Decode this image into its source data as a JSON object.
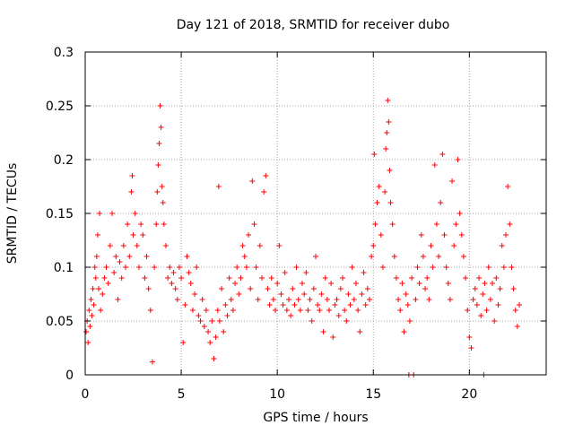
{
  "chart_data": {
    "type": "scatter",
    "title": "Day 121 of 2018, SRMTID for receiver dubo",
    "xlabel": "GPS time / hours",
    "ylabel": "SRMTID / TECUs",
    "xlim": [
      0,
      24
    ],
    "ylim": [
      0,
      0.3
    ],
    "xticks": [
      "0",
      "5",
      "10",
      "15",
      "20"
    ],
    "yticks": [
      "0",
      "0.05",
      "0.1",
      "0.15",
      "0.2",
      "0.25",
      "0.3"
    ],
    "grid": true,
    "marker": "+",
    "series_color": "#ff0000",
    "series": [
      {
        "name": "SRMTID",
        "points": [
          [
            0.05,
            0.04
          ],
          [
            0.1,
            0.05
          ],
          [
            0.15,
            0.03
          ],
          [
            0.2,
            0.06
          ],
          [
            0.25,
            0.045
          ],
          [
            0.3,
            0.07
          ],
          [
            0.35,
            0.055
          ],
          [
            0.4,
            0.08
          ],
          [
            0.45,
            0.065
          ],
          [
            0.5,
            0.1
          ],
          [
            0.55,
            0.09
          ],
          [
            0.6,
            0.11
          ],
          [
            0.65,
            0.13
          ],
          [
            0.7,
            0.08
          ],
          [
            0.75,
            0.15
          ],
          [
            0.8,
            0.06
          ],
          [
            0.9,
            0.075
          ],
          [
            1.0,
            0.09
          ],
          [
            1.1,
            0.1
          ],
          [
            1.2,
            0.085
          ],
          [
            1.3,
            0.12
          ],
          [
            1.4,
            0.15
          ],
          [
            1.5,
            0.095
          ],
          [
            1.6,
            0.11
          ],
          [
            1.7,
            0.07
          ],
          [
            1.8,
            0.105
          ],
          [
            1.9,
            0.09
          ],
          [
            2.0,
            0.12
          ],
          [
            2.1,
            0.1
          ],
          [
            2.2,
            0.14
          ],
          [
            2.3,
            0.11
          ],
          [
            2.4,
            0.17
          ],
          [
            2.45,
            0.185
          ],
          [
            2.5,
            0.13
          ],
          [
            2.6,
            0.15
          ],
          [
            2.7,
            0.12
          ],
          [
            2.8,
            0.1
          ],
          [
            2.9,
            0.14
          ],
          [
            3.0,
            0.13
          ],
          [
            3.1,
            0.09
          ],
          [
            3.2,
            0.11
          ],
          [
            3.3,
            0.08
          ],
          [
            3.4,
            0.06
          ],
          [
            3.5,
            0.012
          ],
          [
            3.6,
            0.1
          ],
          [
            3.7,
            0.14
          ],
          [
            3.75,
            0.17
          ],
          [
            3.8,
            0.195
          ],
          [
            3.85,
            0.215
          ],
          [
            3.9,
            0.25
          ],
          [
            3.95,
            0.23
          ],
          [
            4.0,
            0.175
          ],
          [
            4.05,
            0.16
          ],
          [
            4.1,
            0.14
          ],
          [
            4.2,
            0.12
          ],
          [
            4.3,
            0.09
          ],
          [
            4.4,
            0.1
          ],
          [
            4.5,
            0.085
          ],
          [
            4.6,
            0.095
          ],
          [
            4.7,
            0.08
          ],
          [
            4.8,
            0.07
          ],
          [
            4.9,
            0.1
          ],
          [
            5.0,
            0.09
          ],
          [
            5.1,
            0.03
          ],
          [
            5.2,
            0.065
          ],
          [
            5.3,
            0.11
          ],
          [
            5.4,
            0.095
          ],
          [
            5.5,
            0.085
          ],
          [
            5.6,
            0.06
          ],
          [
            5.7,
            0.075
          ],
          [
            5.8,
            0.1
          ],
          [
            5.9,
            0.055
          ],
          [
            6.0,
            0.05
          ],
          [
            6.1,
            0.07
          ],
          [
            6.2,
            0.045
          ],
          [
            6.3,
            0.06
          ],
          [
            6.4,
            0.04
          ],
          [
            6.5,
            0.03
          ],
          [
            6.6,
            0.05
          ],
          [
            6.7,
            0.015
          ],
          [
            6.8,
            0.035
          ],
          [
            6.9,
            0.06
          ],
          [
            6.95,
            0.175
          ],
          [
            7.0,
            0.05
          ],
          [
            7.1,
            0.08
          ],
          [
            7.2,
            0.04
          ],
          [
            7.3,
            0.065
          ],
          [
            7.4,
            0.055
          ],
          [
            7.5,
            0.09
          ],
          [
            7.6,
            0.07
          ],
          [
            7.7,
            0.06
          ],
          [
            7.8,
            0.085
          ],
          [
            7.9,
            0.1
          ],
          [
            8.0,
            0.075
          ],
          [
            8.1,
            0.09
          ],
          [
            8.2,
            0.12
          ],
          [
            8.3,
            0.11
          ],
          [
            8.4,
            0.1
          ],
          [
            8.5,
            0.13
          ],
          [
            8.6,
            0.08
          ],
          [
            8.7,
            0.18
          ],
          [
            8.8,
            0.14
          ],
          [
            8.9,
            0.1
          ],
          [
            9.0,
            0.07
          ],
          [
            9.1,
            0.12
          ],
          [
            9.2,
            0.09
          ],
          [
            9.3,
            0.17
          ],
          [
            9.4,
            0.185
          ],
          [
            9.5,
            0.08
          ],
          [
            9.6,
            0.065
          ],
          [
            9.7,
            0.09
          ],
          [
            9.8,
            0.07
          ],
          [
            9.9,
            0.06
          ],
          [
            10.0,
            0.085
          ],
          [
            10.1,
            0.12
          ],
          [
            10.2,
            0.075
          ],
          [
            10.3,
            0.065
          ],
          [
            10.4,
            0.095
          ],
          [
            10.5,
            0.06
          ],
          [
            10.6,
            0.07
          ],
          [
            10.7,
            0.055
          ],
          [
            10.8,
            0.08
          ],
          [
            10.9,
            0.065
          ],
          [
            11.0,
            0.1
          ],
          [
            11.1,
            0.07
          ],
          [
            11.2,
            0.06
          ],
          [
            11.3,
            0.085
          ],
          [
            11.4,
            0.075
          ],
          [
            11.5,
            0.095
          ],
          [
            11.6,
            0.06
          ],
          [
            11.7,
            0.07
          ],
          [
            11.8,
            0.05
          ],
          [
            11.9,
            0.08
          ],
          [
            12.0,
            0.11
          ],
          [
            12.1,
            0.065
          ],
          [
            12.2,
            0.06
          ],
          [
            12.3,
            0.075
          ],
          [
            12.4,
            0.04
          ],
          [
            12.5,
            0.09
          ],
          [
            12.6,
            0.07
          ],
          [
            12.7,
            0.06
          ],
          [
            12.8,
            0.085
          ],
          [
            12.9,
            0.035
          ],
          [
            13.0,
            0.065
          ],
          [
            13.1,
            0.07
          ],
          [
            13.2,
            0.055
          ],
          [
            13.3,
            0.08
          ],
          [
            13.4,
            0.09
          ],
          [
            13.5,
            0.06
          ],
          [
            13.6,
            0.05
          ],
          [
            13.7,
            0.075
          ],
          [
            13.8,
            0.065
          ],
          [
            13.9,
            0.1
          ],
          [
            14.0,
            0.07
          ],
          [
            14.1,
            0.085
          ],
          [
            14.2,
            0.06
          ],
          [
            14.3,
            0.04
          ],
          [
            14.4,
            0.075
          ],
          [
            14.5,
            0.095
          ],
          [
            14.6,
            0.065
          ],
          [
            14.7,
            0.08
          ],
          [
            14.8,
            0.07
          ],
          [
            14.9,
            0.11
          ],
          [
            15.0,
            0.12
          ],
          [
            15.05,
            0.205
          ],
          [
            15.1,
            0.14
          ],
          [
            15.2,
            0.16
          ],
          [
            15.3,
            0.175
          ],
          [
            15.4,
            0.13
          ],
          [
            15.5,
            0.1
          ],
          [
            15.6,
            0.17
          ],
          [
            15.65,
            0.21
          ],
          [
            15.7,
            0.225
          ],
          [
            15.75,
            0.255
          ],
          [
            15.8,
            0.235
          ],
          [
            15.85,
            0.19
          ],
          [
            15.9,
            0.16
          ],
          [
            16.0,
            0.14
          ],
          [
            16.1,
            0.11
          ],
          [
            16.2,
            0.09
          ],
          [
            16.3,
            0.07
          ],
          [
            16.4,
            0.06
          ],
          [
            16.5,
            0.085
          ],
          [
            16.6,
            0.04
          ],
          [
            16.7,
            0.075
          ],
          [
            16.8,
            0.065
          ],
          [
            16.85,
            0.0
          ],
          [
            16.9,
            0.05
          ],
          [
            17.0,
            0.09
          ],
          [
            17.1,
            0.0
          ],
          [
            17.2,
            0.07
          ],
          [
            17.3,
            0.1
          ],
          [
            17.4,
            0.085
          ],
          [
            17.5,
            0.13
          ],
          [
            17.6,
            0.11
          ],
          [
            17.7,
            0.08
          ],
          [
            17.8,
            0.09
          ],
          [
            17.9,
            0.07
          ],
          [
            18.0,
            0.12
          ],
          [
            18.1,
            0.1
          ],
          [
            18.2,
            0.195
          ],
          [
            18.3,
            0.14
          ],
          [
            18.4,
            0.11
          ],
          [
            18.5,
            0.16
          ],
          [
            18.6,
            0.205
          ],
          [
            18.7,
            0.13
          ],
          [
            18.8,
            0.1
          ],
          [
            18.9,
            0.085
          ],
          [
            19.0,
            0.07
          ],
          [
            19.1,
            0.18
          ],
          [
            19.2,
            0.12
          ],
          [
            19.3,
            0.14
          ],
          [
            19.4,
            0.2
          ],
          [
            19.5,
            0.15
          ],
          [
            19.6,
            0.13
          ],
          [
            19.7,
            0.11
          ],
          [
            19.8,
            0.09
          ],
          [
            19.9,
            0.06
          ],
          [
            20.0,
            0.035
          ],
          [
            20.1,
            0.025
          ],
          [
            20.2,
            0.07
          ],
          [
            20.3,
            0.08
          ],
          [
            20.4,
            0.065
          ],
          [
            20.5,
            0.09
          ],
          [
            20.6,
            0.055
          ],
          [
            20.7,
            0.075
          ],
          [
            20.75,
            0.0
          ],
          [
            20.8,
            0.085
          ],
          [
            20.9,
            0.06
          ],
          [
            21.0,
            0.1
          ],
          [
            21.1,
            0.07
          ],
          [
            21.2,
            0.085
          ],
          [
            21.3,
            0.05
          ],
          [
            21.4,
            0.09
          ],
          [
            21.5,
            0.065
          ],
          [
            21.6,
            0.08
          ],
          [
            21.7,
            0.12
          ],
          [
            21.8,
            0.1
          ],
          [
            21.9,
            0.13
          ],
          [
            22.0,
            0.175
          ],
          [
            22.1,
            0.14
          ],
          [
            22.2,
            0.1
          ],
          [
            22.3,
            0.08
          ],
          [
            22.4,
            0.06
          ],
          [
            22.5,
            0.045
          ],
          [
            22.6,
            0.065
          ]
        ]
      }
    ]
  }
}
